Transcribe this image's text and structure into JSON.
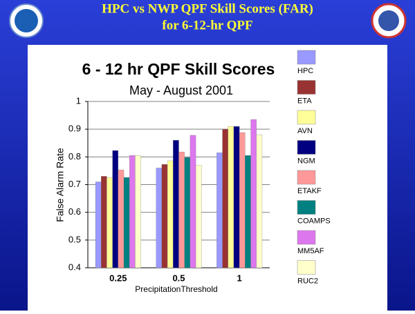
{
  "slide_title": [
    "HPC vs NWP QPF Skill Scores (FAR)",
    "for 6-12-hr QPF"
  ],
  "chart_data": {
    "type": "bar",
    "title": "6 - 12 hr QPF Skill Scores",
    "subtitle": "May - August 2001",
    "y_label": "False Alarm Rate",
    "x_label": "PrecipitationThreshold",
    "categories": [
      "0.25",
      "0.5",
      "1"
    ],
    "ylim": [
      0.4,
      1
    ],
    "yticks": [
      0.4,
      0.5,
      0.6,
      0.7,
      0.8,
      0.9,
      1
    ],
    "grid": true,
    "legend": "right",
    "series": [
      {
        "name": "HPC",
        "color": "#9999ff",
        "values": [
          0.71,
          0.76,
          0.815
        ]
      },
      {
        "name": "ETA",
        "color": "#993333",
        "values": [
          0.73,
          0.773,
          0.9
        ]
      },
      {
        "name": "AVN",
        "color": "#ffff99",
        "values": [
          0.725,
          0.786,
          0.91
        ]
      },
      {
        "name": "NGM",
        "color": "#000080",
        "values": [
          0.823,
          0.86,
          0.91
        ]
      },
      {
        "name": "ETAKF",
        "color": "#ff9999",
        "values": [
          0.753,
          0.818,
          0.888
        ]
      },
      {
        "name": "COAMPS",
        "color": "#008080",
        "values": [
          0.726,
          0.798,
          0.805
        ]
      },
      {
        "name": "MM5AF",
        "color": "#dd77ee",
        "values": [
          0.805,
          0.878,
          0.935
        ]
      },
      {
        "name": "RUC2",
        "color": "#ffffcc",
        "values": [
          0.805,
          0.77,
          0.88
        ]
      }
    ]
  }
}
